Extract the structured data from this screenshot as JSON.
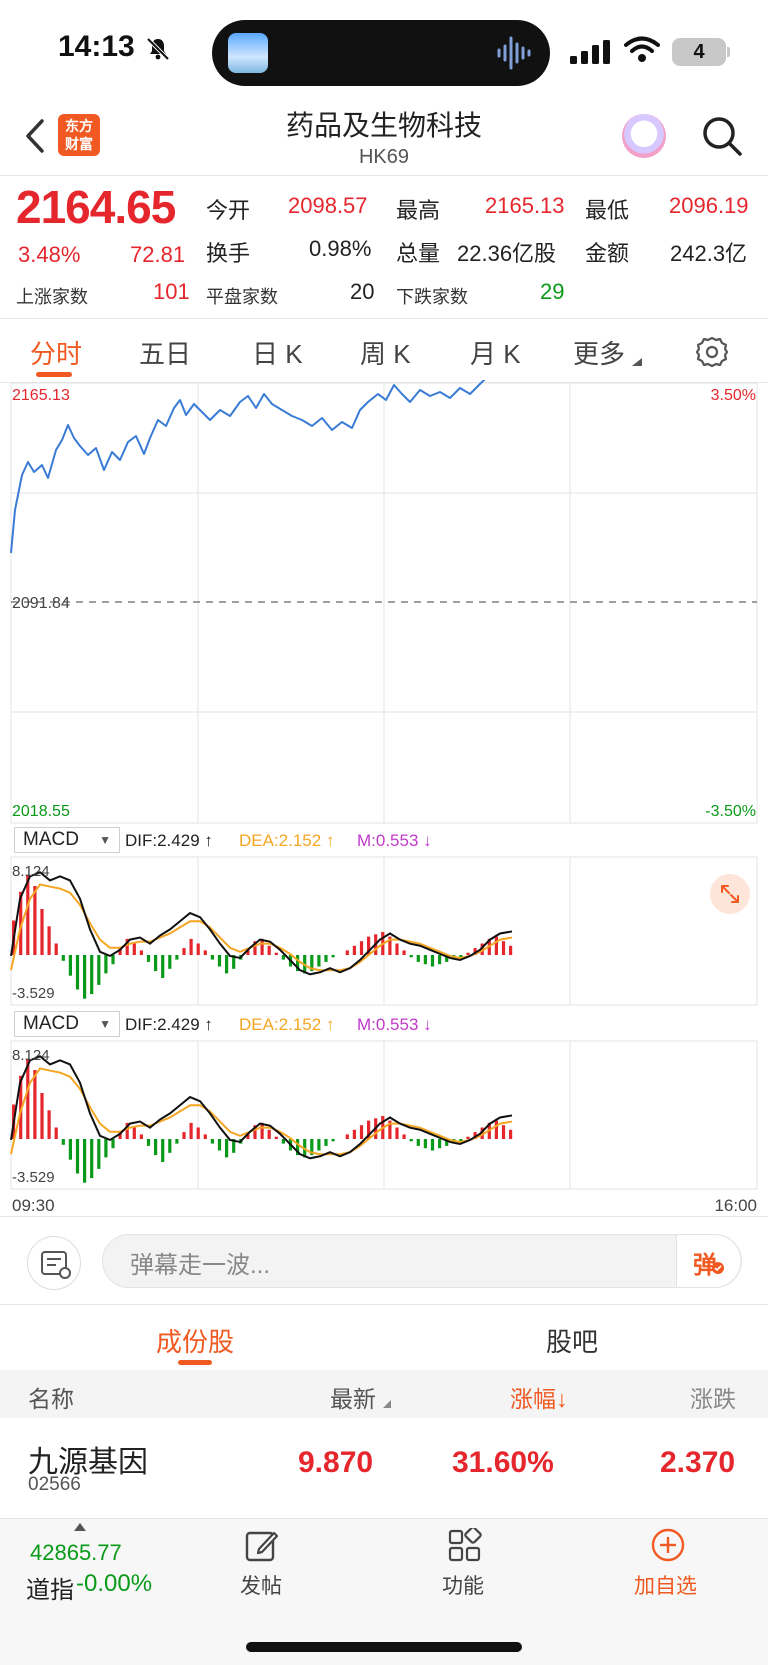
{
  "status_bar": {
    "time": "14:13",
    "battery": "4"
  },
  "nav": {
    "title": "药品及生物科技",
    "code": "HK69",
    "logo_line1": "东方",
    "logo_line2": "财富"
  },
  "quote": {
    "price": "2164.65",
    "change_pct": "3.48%",
    "change": "72.81",
    "open_label": "今开",
    "open": "2098.57",
    "high_label": "最高",
    "high": "2165.13",
    "low_label": "最低",
    "low": "2096.19",
    "turnover_label": "换手",
    "turnover": "0.98%",
    "volume_label": "总量",
    "volume": "22.36亿股",
    "amount_label": "金额",
    "amount": "242.3亿",
    "up_label": "上涨家数",
    "up": "101",
    "flat_label": "平盘家数",
    "flat": "20",
    "down_label": "下跌家数",
    "down": "29"
  },
  "tabs": [
    "分时",
    "五日",
    "日 K",
    "周 K",
    "月 K",
    "更多"
  ],
  "intraday": {
    "top_price": "2165.13",
    "top_pct": "3.50%",
    "base_price": "2091.84",
    "bottom_price": "2018.55",
    "bottom_pct": "-3.50%",
    "time_start": "09:30",
    "time_end": "16:00",
    "line_color": "#3a7bd5"
  },
  "macd": {
    "label": "MACD",
    "dif": "DIF:2.429 ↑",
    "dea": "DEA:2.152 ↑",
    "m": "M:0.553 ↓",
    "max": "8.124",
    "min": "-3.529"
  },
  "danmaku": {
    "placeholder": "弹幕走一波...",
    "button": "弹"
  },
  "sections": {
    "constituents": "成份股",
    "forum": "股吧"
  },
  "table": {
    "headers": [
      "名称",
      "最新",
      "涨幅↓",
      "涨跌"
    ],
    "rows": [
      {
        "name": "九源基因",
        "code": "02566",
        "latest": "9.870",
        "pct": "31.60%",
        "chg": "2.370"
      }
    ]
  },
  "bottom_bar": {
    "index_value": "42865.77",
    "index_name": "道指",
    "index_change": "-0.00%",
    "post": "发帖",
    "functions": "功能",
    "add_watch": "加自选"
  },
  "colors": {
    "up": "#e5262c",
    "down": "#0a9a1a",
    "accent": "#f05a22",
    "dea": "#f5a623",
    "m": "#c13ac8"
  }
}
